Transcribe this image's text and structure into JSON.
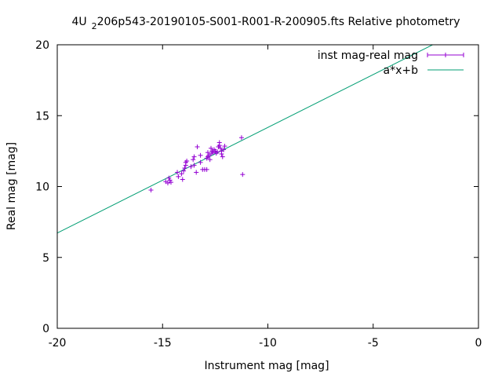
{
  "chart_data": {
    "type": "scatter",
    "title_prefix": "4U",
    "title_subscript": "2",
    "title_rest": "206p543-20190105-S001-R001-R-200905.fts Relative photometry",
    "xlabel": "Instrument mag [mag]",
    "ylabel": "Real mag [mag]",
    "xlim": [
      -20,
      0
    ],
    "ylim": [
      0,
      20
    ],
    "xticks": [
      -20,
      -15,
      -10,
      -5,
      0
    ],
    "yticks": [
      0,
      5,
      10,
      15,
      20
    ],
    "grid": false,
    "legend_position": "top-right",
    "series": [
      {
        "name": "inst mag-real mag",
        "kind": "points-with-errorbars",
        "color": "#9400d3",
        "points": [
          [
            -15.55,
            9.75
          ],
          [
            -14.85,
            10.35
          ],
          [
            -14.75,
            10.25
          ],
          [
            -14.65,
            10.45
          ],
          [
            -14.6,
            10.3
          ],
          [
            -14.7,
            10.6
          ],
          [
            -14.3,
            11.0
          ],
          [
            -14.25,
            10.7
          ],
          [
            -14.1,
            10.9
          ],
          [
            -14.05,
            10.5
          ],
          [
            -14.0,
            11.1
          ],
          [
            -13.95,
            11.3
          ],
          [
            -13.9,
            11.5
          ],
          [
            -13.85,
            11.8
          ],
          [
            -13.9,
            11.7
          ],
          [
            -13.65,
            11.4
          ],
          [
            -13.5,
            11.5
          ],
          [
            -13.55,
            11.9
          ],
          [
            -13.5,
            12.1
          ],
          [
            -13.4,
            11.0
          ],
          [
            -13.35,
            12.8
          ],
          [
            -13.2,
            11.7
          ],
          [
            -13.2,
            12.2
          ],
          [
            -13.1,
            11.2
          ],
          [
            -13.0,
            11.2
          ],
          [
            -12.9,
            11.2
          ],
          [
            -12.9,
            12.0
          ],
          [
            -12.85,
            12.1
          ],
          [
            -12.85,
            12.4
          ],
          [
            -12.8,
            12.2
          ],
          [
            -12.75,
            11.9
          ],
          [
            -12.7,
            12.3
          ],
          [
            -12.7,
            12.7
          ],
          [
            -12.65,
            12.5
          ],
          [
            -12.6,
            12.4
          ],
          [
            -12.55,
            12.6
          ],
          [
            -12.5,
            12.5
          ],
          [
            -12.45,
            12.35
          ],
          [
            -12.4,
            12.45
          ],
          [
            -12.35,
            12.8
          ],
          [
            -12.3,
            13.1
          ],
          [
            -12.3,
            12.9
          ],
          [
            -12.25,
            12.7
          ],
          [
            -12.2,
            12.3
          ],
          [
            -12.2,
            12.5
          ],
          [
            -12.15,
            12.1
          ],
          [
            -12.1,
            12.6
          ],
          [
            -12.05,
            12.85
          ],
          [
            -11.25,
            13.45
          ],
          [
            -11.2,
            10.85
          ]
        ]
      },
      {
        "name": "a*x+b",
        "kind": "line",
        "color": "#009e73",
        "slope": 0.745,
        "intercept": 21.62
      }
    ]
  }
}
